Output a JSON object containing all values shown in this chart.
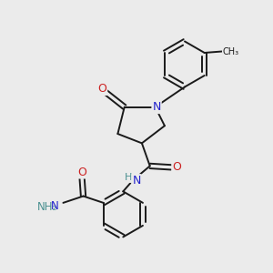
{
  "background_color": "#ebebeb",
  "bond_color": "#1a1a1a",
  "atom_colors": {
    "N": "#2222cc",
    "O": "#cc2222",
    "C": "#1a1a1a",
    "H": "#4a9090"
  },
  "figsize": [
    3.0,
    3.0
  ],
  "dpi": 100
}
